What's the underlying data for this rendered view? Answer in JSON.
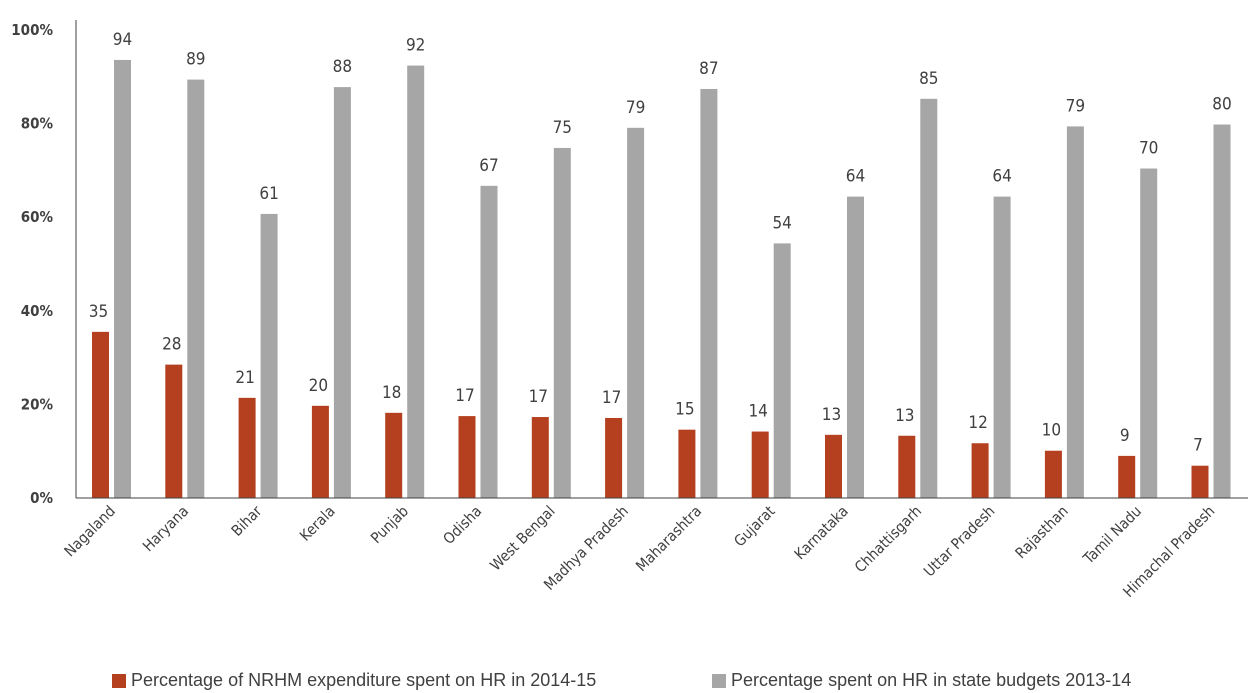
{
  "colors": {
    "nrhm": "#b5401f",
    "state": "#a6a6a6",
    "axis": "#404040"
  },
  "chart_data": {
    "type": "bar",
    "categories": [
      "Nagaland",
      "Haryana",
      "Bihar",
      "Kerala",
      "Punjab",
      "Odisha",
      "West Bengal",
      "Madhya Pradesh",
      "Maharashtra",
      "Gujarat",
      "Karnataka",
      "Chhattisgarh",
      "Uttar Pradesh",
      "Rajasthan",
      "Tamil Nadu",
      "Himachal Pradesh"
    ],
    "series": [
      {
        "name": "Percentage of NRHM expenditure spent on HR in 2014-15",
        "color": "#b5401f",
        "values": [
          35,
          28,
          21,
          20,
          18,
          17,
          17,
          17,
          15,
          14,
          13,
          13,
          12,
          10,
          9,
          7
        ],
        "plotted": [
          35.5,
          28.5,
          21.4,
          19.7,
          18.2,
          17.5,
          17.3,
          17.1,
          14.6,
          14.2,
          13.5,
          13.3,
          11.7,
          10.1,
          9.0,
          6.9
        ]
      },
      {
        "name": "Percentage spent on HR in state budgets 2013-14",
        "color": "#a6a6a6",
        "values": [
          94,
          89,
          61,
          88,
          92,
          67,
          75,
          79,
          87,
          54,
          64,
          85,
          64,
          79,
          70,
          80
        ],
        "plotted": [
          93.6,
          89.4,
          60.7,
          87.8,
          92.4,
          66.7,
          74.8,
          79.1,
          87.4,
          54.4,
          64.4,
          85.3,
          64.4,
          79.4,
          70.4,
          79.8
        ]
      }
    ],
    "yticks": [
      "0%",
      "20%",
      "40%",
      "60%",
      "80%",
      "100%"
    ],
    "ylim": [
      0,
      100
    ],
    "xlabel": "",
    "ylabel": "",
    "grid": false,
    "legend_position": "bottom"
  }
}
